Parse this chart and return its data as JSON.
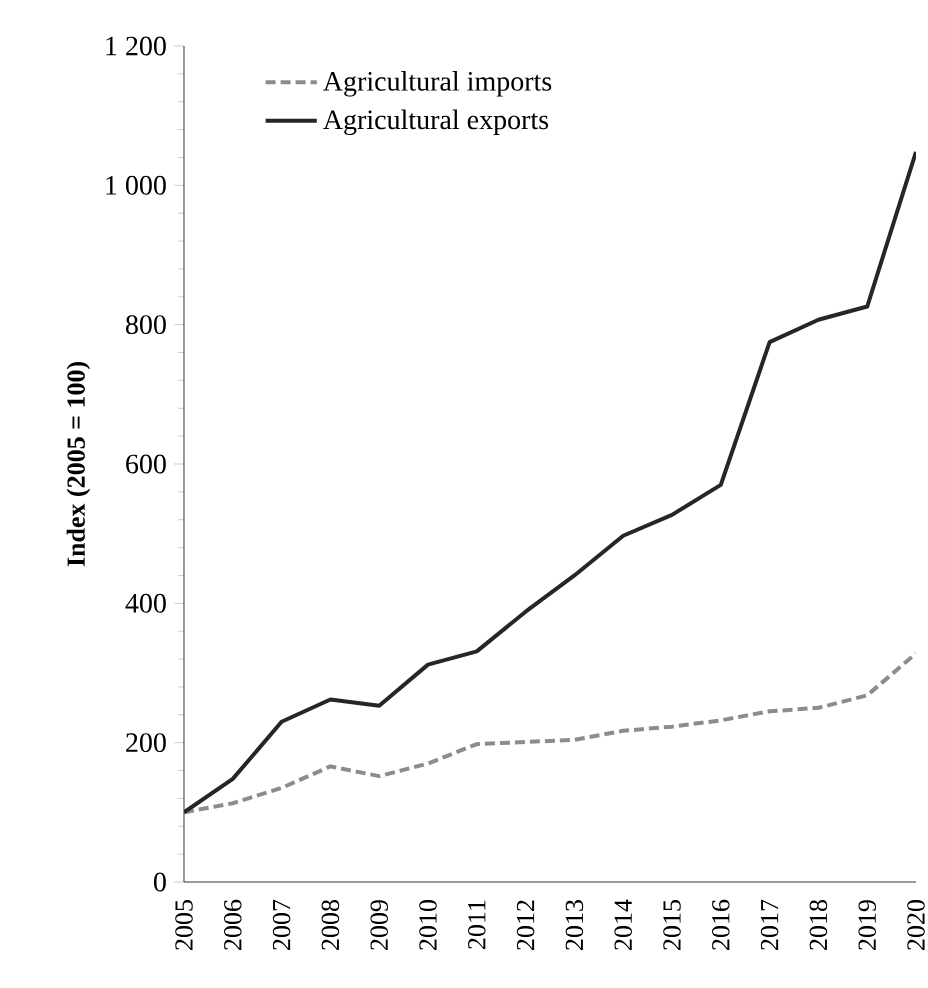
{
  "chart_data": {
    "type": "line",
    "ylabel": "Index (2005 = 100)",
    "categories": [
      "2005",
      "2006",
      "2007",
      "2008",
      "2009",
      "2010",
      "2011",
      "2012",
      "2013",
      "2014",
      "2015",
      "2016",
      "2017",
      "2018",
      "2019",
      "2020"
    ],
    "series": [
      {
        "name": "Agricultural imports",
        "color": "#8c8c8c",
        "line_style": "dashed",
        "values": [
          100,
          113,
          135,
          166,
          152,
          170,
          198,
          201,
          204,
          217,
          223,
          232,
          245,
          250,
          268,
          328
        ]
      },
      {
        "name": "Agricultural exports",
        "color": "#262626",
        "line_style": "solid",
        "values": [
          100,
          148,
          230,
          262,
          253,
          312,
          331,
          388,
          440,
          497,
          527,
          570,
          775,
          807,
          826,
          1048
        ]
      }
    ],
    "ylim": [
      0,
      1200
    ],
    "yticks": [
      0,
      200,
      400,
      600,
      800,
      {
        "value": 1000,
        "label": "1 000"
      },
      {
        "value": 1200,
        "label": "1 200"
      }
    ],
    "legend": "top left",
    "grid": false,
    "marker": "none"
  }
}
